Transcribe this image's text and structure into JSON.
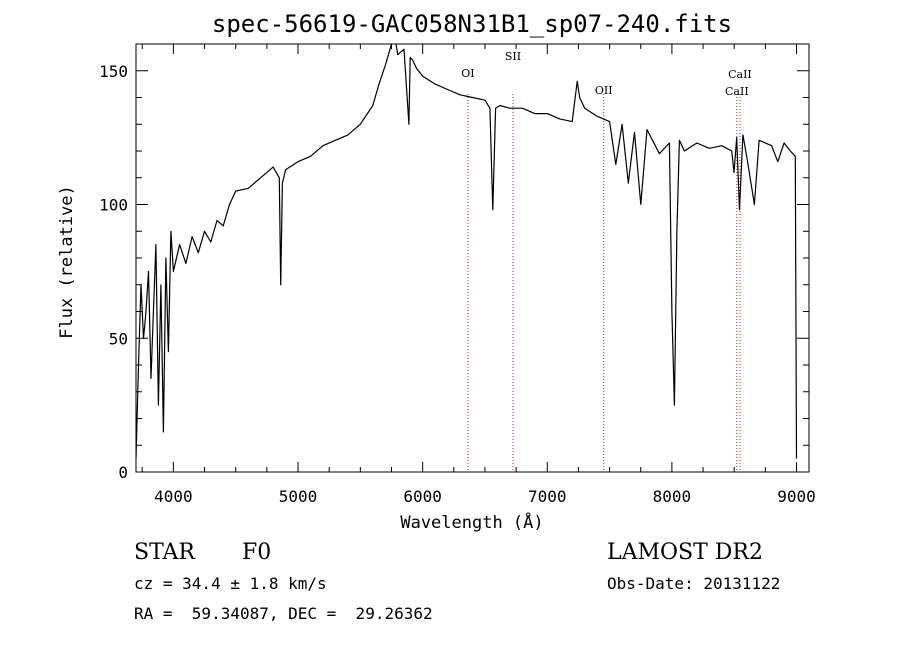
{
  "chart_data": {
    "type": "line",
    "title": "spec-56619-GAC058N31B1_sp07-240.fits",
    "xlabel": "Wavelength (Å)",
    "ylabel": "Flux (relative)",
    "xlim": [
      3700,
      9100
    ],
    "ylim": [
      0,
      160
    ],
    "xticks": [
      4000,
      5000,
      6000,
      7000,
      8000,
      9000
    ],
    "yticks": [
      0,
      50,
      100,
      150
    ],
    "line_color": "#000000",
    "marker_color": "#b22222",
    "series": [
      {
        "x": [
          3700,
          3720,
          3740,
          3760,
          3780,
          3800,
          3820,
          3840,
          3860,
          3880,
          3900,
          3920,
          3940,
          3960,
          3980,
          4000,
          4050,
          4100,
          4150,
          4200,
          4250,
          4300,
          4350,
          4400,
          4450,
          4500,
          4600,
          4700,
          4800,
          4850,
          4861,
          4875,
          4900,
          5000,
          5100,
          5200,
          5300,
          5400,
          5500,
          5600,
          5650,
          5700,
          5750,
          5780,
          5800,
          5850,
          5890,
          5900,
          5920,
          5950,
          6000,
          6100,
          6200,
          6300,
          6400,
          6500,
          6540,
          6563,
          6585,
          6620,
          6700,
          6800,
          6900,
          7000,
          7100,
          7200,
          7240,
          7260,
          7300,
          7400,
          7500,
          7550,
          7600,
          7650,
          7700,
          7750,
          7800,
          7900,
          7980,
          8000,
          8020,
          8040,
          8060,
          8100,
          8200,
          8300,
          8400,
          8480,
          8498,
          8520,
          8542,
          8570,
          8600,
          8662,
          8700,
          8800,
          8850,
          8900,
          8950,
          8990,
          9000
        ],
        "y": [
          5,
          40,
          70,
          50,
          60,
          75,
          35,
          60,
          85,
          25,
          70,
          15,
          80,
          45,
          90,
          75,
          85,
          78,
          88,
          82,
          90,
          86,
          94,
          92,
          100,
          105,
          106,
          110,
          114,
          110,
          70,
          108,
          113,
          116,
          118,
          122,
          124,
          126,
          130,
          137,
          145,
          152,
          160,
          162,
          156,
          158,
          130,
          155,
          154,
          151,
          148,
          145,
          143,
          141,
          140,
          139,
          136,
          98,
          136,
          137,
          136,
          136,
          134,
          134,
          132,
          131,
          146,
          140,
          136,
          133,
          131,
          115,
          130,
          108,
          127,
          100,
          128,
          119,
          123,
          60,
          25,
          90,
          124,
          120,
          123,
          121,
          122,
          120,
          112,
          125,
          98,
          126,
          118,
          100,
          124,
          122,
          116,
          123,
          120,
          118,
          5
        ]
      }
    ],
    "line_markers": [
      {
        "label": "OI",
        "x": 6363
      },
      {
        "label": "SII",
        "x": 6725
      },
      {
        "label": "OII",
        "x": 7453
      },
      {
        "label": "CaII",
        "x": 8521
      },
      {
        "label": "CaII",
        "x": 8546
      }
    ]
  },
  "info": {
    "object_class": "STAR",
    "subclass": "F0",
    "survey": "LAMOST DR2",
    "redshift_line": "cz = 34.4 ± 1.8 km/s",
    "obs_date": "Obs-Date: 20131122",
    "coords": "RA =  59.34087, DEC =  29.26362"
  }
}
